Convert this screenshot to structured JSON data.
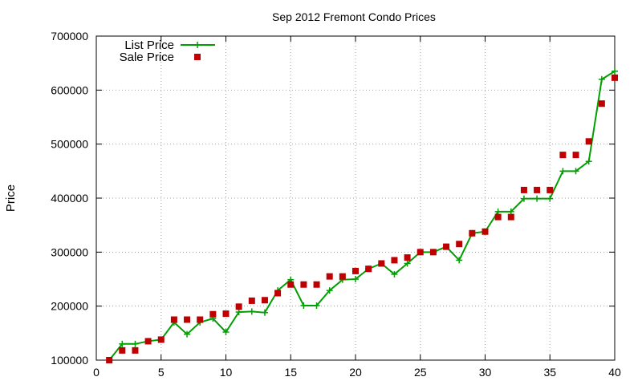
{
  "chart_data": {
    "type": "line",
    "title": "Sep 2012 Fremont Condo Prices",
    "xlabel": "",
    "ylabel": "Price",
    "xlim": [
      0,
      40
    ],
    "ylim": [
      100000,
      700000
    ],
    "x_ticks": [
      0,
      5,
      10,
      15,
      20,
      25,
      30,
      35,
      40
    ],
    "y_ticks": [
      100000,
      200000,
      300000,
      400000,
      500000,
      600000,
      700000
    ],
    "grid": true,
    "legend_position": "top-left",
    "x": [
      1,
      2,
      3,
      4,
      5,
      6,
      7,
      8,
      9,
      10,
      11,
      12,
      13,
      14,
      15,
      16,
      17,
      18,
      19,
      20,
      21,
      22,
      23,
      24,
      25,
      26,
      27,
      28,
      29,
      30,
      31,
      32,
      33,
      34,
      35,
      36,
      37,
      38,
      39,
      40
    ],
    "series": [
      {
        "name": "List Price",
        "style": "lines+points",
        "marker": "plus",
        "color": "#00a000",
        "values": [
          100000,
          130000,
          130000,
          135000,
          138000,
          170000,
          148000,
          170000,
          177000,
          152000,
          189000,
          190000,
          188000,
          229000,
          249000,
          201000,
          201000,
          229000,
          249000,
          250000,
          269000,
          279000,
          259000,
          279000,
          300000,
          300000,
          310000,
          285000,
          335000,
          338000,
          375000,
          375000,
          399000,
          399000,
          399000,
          450000,
          450000,
          468000,
          620000,
          635000
        ]
      },
      {
        "name": "Sale Price",
        "style": "points",
        "marker": "square",
        "color": "#c00000",
        "values": [
          100000,
          118000,
          118000,
          135000,
          138000,
          175000,
          175000,
          175000,
          185000,
          186000,
          199000,
          210000,
          211000,
          224000,
          240000,
          240000,
          240000,
          255000,
          255000,
          265000,
          269000,
          279000,
          285000,
          290000,
          300000,
          300000,
          310000,
          315000,
          335000,
          338000,
          365000,
          365000,
          415000,
          415000,
          415000,
          480000,
          480000,
          505000,
          575000,
          623000
        ]
      }
    ]
  }
}
